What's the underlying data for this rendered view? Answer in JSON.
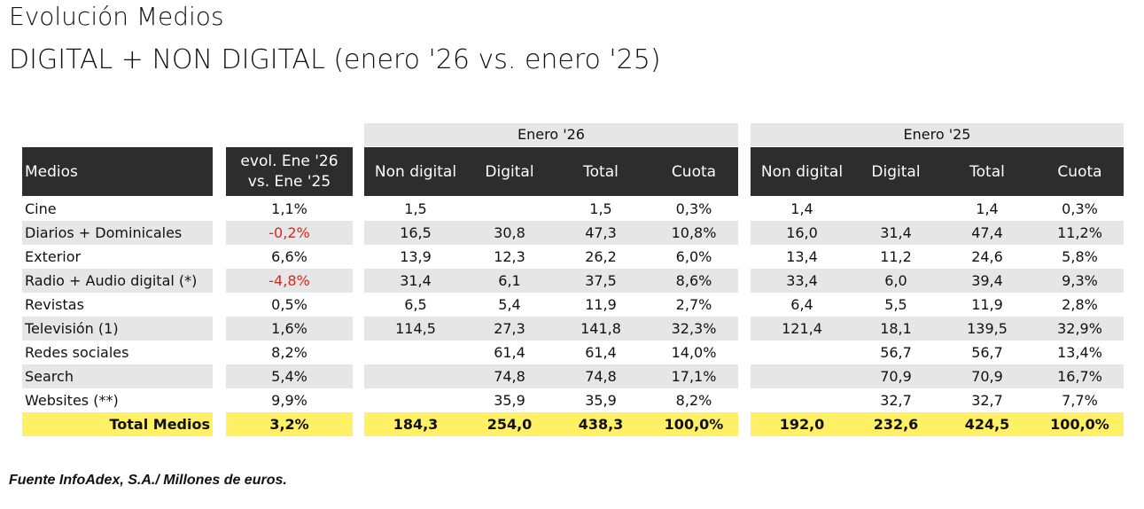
{
  "title_line1": "Evolución Medios",
  "title_line2": "DIGITAL + NON DIGITAL (enero '26 vs. enero '25)",
  "group_26": "Enero '26",
  "group_25": "Enero '25",
  "headers": {
    "medios": "Medios",
    "evol_line1": "evol. Ene '26",
    "evol_line2": "vs. Ene '25",
    "non_digital": "Non digital",
    "digital": "Digital",
    "total": "Total",
    "cuota": "Cuota"
  },
  "rows": [
    {
      "medio": "Cine",
      "evol": "1,1%",
      "neg": false,
      "a_nd": "1,5",
      "a_d": "",
      "a_t": "1,5",
      "a_c": "0,3%",
      "b_nd": "1,4",
      "b_d": "",
      "b_t": "1,4",
      "b_c": "0,3%"
    },
    {
      "medio": "Diarios + Dominicales",
      "evol": "-0,2%",
      "neg": true,
      "a_nd": "16,5",
      "a_d": "30,8",
      "a_t": "47,3",
      "a_c": "10,8%",
      "b_nd": "16,0",
      "b_d": "31,4",
      "b_t": "47,4",
      "b_c": "11,2%"
    },
    {
      "medio": "Exterior",
      "evol": "6,6%",
      "neg": false,
      "a_nd": "13,9",
      "a_d": "12,3",
      "a_t": "26,2",
      "a_c": "6,0%",
      "b_nd": "13,4",
      "b_d": "11,2",
      "b_t": "24,6",
      "b_c": "5,8%"
    },
    {
      "medio": "Radio + Audio digital (*)",
      "evol": "-4,8%",
      "neg": true,
      "a_nd": "31,4",
      "a_d": "6,1",
      "a_t": "37,5",
      "a_c": "8,6%",
      "b_nd": "33,4",
      "b_d": "6,0",
      "b_t": "39,4",
      "b_c": "9,3%"
    },
    {
      "medio": "Revistas",
      "evol": "0,5%",
      "neg": false,
      "a_nd": "6,5",
      "a_d": "5,4",
      "a_t": "11,9",
      "a_c": "2,7%",
      "b_nd": "6,4",
      "b_d": "5,5",
      "b_t": "11,9",
      "b_c": "2,8%"
    },
    {
      "medio": "Televisión (1)",
      "evol": "1,6%",
      "neg": false,
      "a_nd": "114,5",
      "a_d": "27,3",
      "a_t": "141,8",
      "a_c": "32,3%",
      "b_nd": "121,4",
      "b_d": "18,1",
      "b_t": "139,5",
      "b_c": "32,9%"
    },
    {
      "medio": "Redes sociales",
      "evol": "8,2%",
      "neg": false,
      "a_nd": "",
      "a_d": "61,4",
      "a_t": "61,4",
      "a_c": "14,0%",
      "b_nd": "",
      "b_d": "56,7",
      "b_t": "56,7",
      "b_c": "13,4%"
    },
    {
      "medio": "Search",
      "evol": "5,4%",
      "neg": false,
      "a_nd": "",
      "a_d": "74,8",
      "a_t": "74,8",
      "a_c": "17,1%",
      "b_nd": "",
      "b_d": "70,9",
      "b_t": "70,9",
      "b_c": "16,7%"
    },
    {
      "medio": "Websites (**)",
      "evol": "9,9%",
      "neg": false,
      "a_nd": "",
      "a_d": "35,9",
      "a_t": "35,9",
      "a_c": "8,2%",
      "b_nd": "",
      "b_d": "32,7",
      "b_t": "32,7",
      "b_c": "7,7%"
    }
  ],
  "total": {
    "medio": "Total Medios",
    "evol": "3,2%",
    "a_nd": "184,3",
    "a_d": "254,0",
    "a_t": "438,3",
    "a_c": "100,0%",
    "b_nd": "192,0",
    "b_d": "232,6",
    "b_t": "424,5",
    "b_c": "100,0%"
  },
  "footnote": "Fuente InfoAdex, S.A./ Millones de euros."
}
